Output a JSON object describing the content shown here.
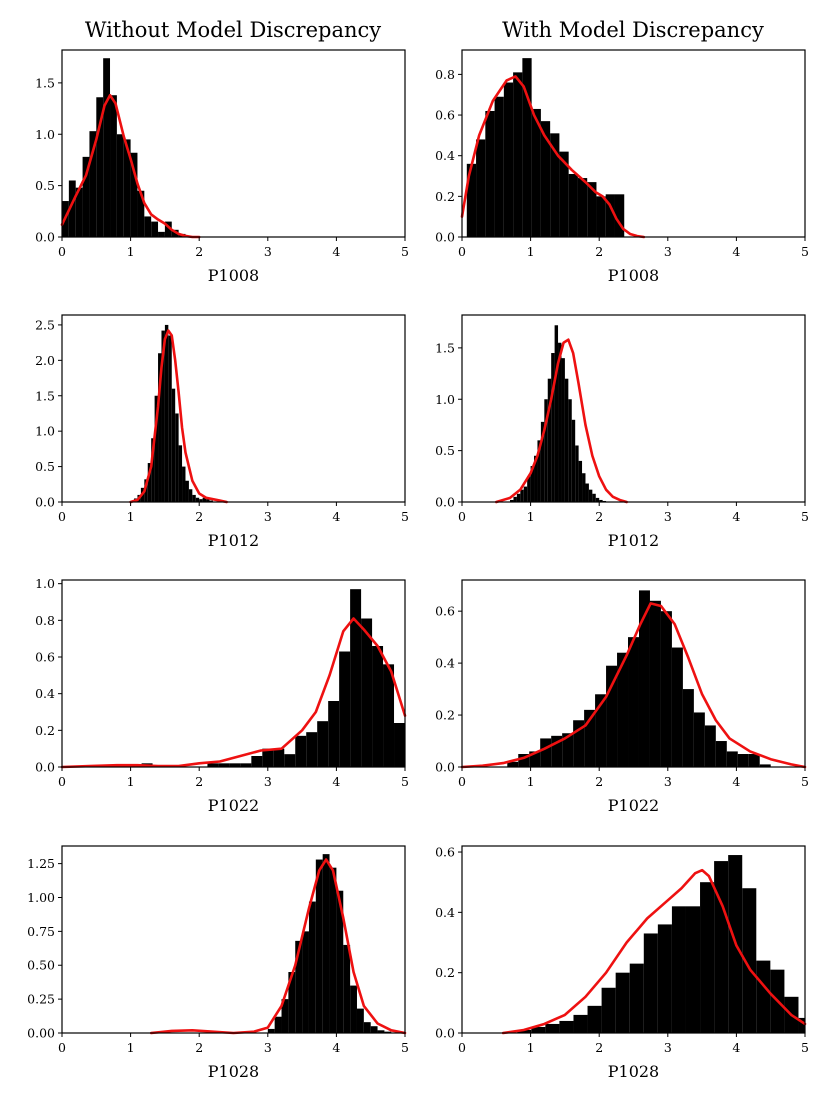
{
  "figure": {
    "column_titles": [
      "Without Model Discrepancy",
      "With Model Discrepancy"
    ]
  },
  "chart_data": [
    {
      "type": "bar",
      "overlay": "kde line",
      "column_title": "Without Model Discrepancy",
      "xlabel": "P1008",
      "ylabel": "",
      "xlim": [
        0,
        5
      ],
      "ylim": [
        0,
        1.82
      ],
      "xticks": [
        "0",
        "1",
        "2",
        "3",
        "4",
        "5"
      ],
      "yticks": [
        "0.0",
        "0.5",
        "1.0",
        "1.5"
      ],
      "ytick_values": [
        0,
        0.5,
        1.0,
        1.5
      ],
      "bins": {
        "start": 0.0,
        "width": 0.1
      },
      "values": [
        0.35,
        0.55,
        0.48,
        0.78,
        1.03,
        1.36,
        1.74,
        1.38,
        1.0,
        0.95,
        0.82,
        0.45,
        0.2,
        0.15,
        0.05,
        0.15,
        0.07,
        0.03,
        0.01
      ],
      "kde": {
        "x": [
          0,
          0.2,
          0.35,
          0.5,
          0.62,
          0.7,
          0.78,
          0.9,
          1.0,
          1.1,
          1.2,
          1.3,
          1.4,
          1.5,
          1.6,
          1.7,
          1.8,
          1.9,
          2.0
        ],
        "y": [
          0.12,
          0.4,
          0.6,
          0.95,
          1.28,
          1.38,
          1.3,
          0.98,
          0.76,
          0.52,
          0.33,
          0.22,
          0.17,
          0.13,
          0.07,
          0.03,
          0.01,
          0.0,
          0.0
        ]
      }
    },
    {
      "type": "bar",
      "overlay": "kde line",
      "column_title": "With Model Discrepancy",
      "xlabel": "P1008",
      "ylabel": "",
      "xlim": [
        0,
        5
      ],
      "ylim": [
        0,
        0.92
      ],
      "xticks": [
        "0",
        "1",
        "2",
        "3",
        "4",
        "5"
      ],
      "yticks": [
        "0.0",
        "0.2",
        "0.4",
        "0.6",
        "0.8"
      ],
      "ytick_values": [
        0,
        0.2,
        0.4,
        0.6,
        0.8
      ],
      "bins": {
        "start": 0.07,
        "width": 0.135
      },
      "values": [
        0.36,
        0.48,
        0.62,
        0.69,
        0.76,
        0.81,
        0.88,
        0.63,
        0.57,
        0.51,
        0.42,
        0.31,
        0.29,
        0.27,
        0.2,
        0.21,
        0.21
      ],
      "kde": {
        "x": [
          0,
          0.1,
          0.25,
          0.45,
          0.65,
          0.78,
          0.9,
          1.05,
          1.2,
          1.4,
          1.6,
          1.8,
          1.95,
          2.05,
          2.15,
          2.25,
          2.35,
          2.45,
          2.55,
          2.65
        ],
        "y": [
          0.1,
          0.3,
          0.5,
          0.67,
          0.77,
          0.79,
          0.74,
          0.6,
          0.5,
          0.4,
          0.33,
          0.27,
          0.22,
          0.2,
          0.16,
          0.09,
          0.04,
          0.015,
          0.005,
          0.0
        ]
      }
    },
    {
      "type": "bar",
      "overlay": "kde line",
      "column_title": "Without Model Discrepancy",
      "xlabel": "P1012",
      "ylabel": "",
      "xlim": [
        0,
        5
      ],
      "ylim": [
        0,
        2.64
      ],
      "xticks": [
        "0",
        "1",
        "2",
        "3",
        "4",
        "5"
      ],
      "yticks": [
        "0.0",
        "0.5",
        "1.0",
        "1.5",
        "2.0",
        "2.5"
      ],
      "ytick_values": [
        0,
        0.5,
        1.0,
        1.5,
        2.0,
        2.5
      ],
      "bins": {
        "start": 1.0,
        "width": 0.05
      },
      "values": [
        0.01,
        0.05,
        0.1,
        0.2,
        0.32,
        0.55,
        0.9,
        1.5,
        2.1,
        2.42,
        2.5,
        2.35,
        1.6,
        1.25,
        0.8,
        0.5,
        0.3,
        0.18,
        0.1,
        0.06,
        0.04,
        0.06,
        0.04,
        0.02
      ],
      "kde": {
        "x": [
          1.0,
          1.1,
          1.2,
          1.3,
          1.4,
          1.45,
          1.5,
          1.55,
          1.6,
          1.65,
          1.7,
          1.75,
          1.8,
          1.9,
          2.0,
          2.1,
          2.2,
          2.3,
          2.4
        ],
        "y": [
          0.0,
          0.03,
          0.15,
          0.5,
          1.35,
          1.9,
          2.3,
          2.42,
          2.35,
          2.0,
          1.55,
          1.05,
          0.7,
          0.3,
          0.12,
          0.06,
          0.04,
          0.02,
          0.0
        ]
      }
    },
    {
      "type": "bar",
      "overlay": "kde line",
      "column_title": "With Model Discrepancy",
      "xlabel": "P1012",
      "ylabel": "",
      "xlim": [
        0,
        5
      ],
      "ylim": [
        0,
        1.82
      ],
      "xticks": [
        "0",
        "1",
        "2",
        "3",
        "4",
        "5"
      ],
      "yticks": [
        "0.0",
        "0.5",
        "1.0",
        "1.5"
      ],
      "ytick_values": [
        0,
        0.5,
        1.0,
        1.5
      ],
      "bins": {
        "start": 0.7,
        "width": 0.05
      },
      "values": [
        0.02,
        0.05,
        0.08,
        0.12,
        0.15,
        0.25,
        0.35,
        0.45,
        0.6,
        0.78,
        1.0,
        1.2,
        1.45,
        1.72,
        1.55,
        1.4,
        1.2,
        1.0,
        0.8,
        0.55,
        0.4,
        0.28,
        0.18,
        0.12,
        0.08,
        0.04,
        0.02,
        0.01
      ],
      "kde": {
        "x": [
          0.5,
          0.7,
          0.85,
          1.0,
          1.1,
          1.2,
          1.3,
          1.4,
          1.48,
          1.55,
          1.62,
          1.7,
          1.8,
          1.9,
          2.0,
          2.1,
          2.2,
          2.3,
          2.4
        ],
        "y": [
          0.0,
          0.04,
          0.12,
          0.28,
          0.45,
          0.7,
          1.0,
          1.35,
          1.55,
          1.58,
          1.45,
          1.15,
          0.75,
          0.45,
          0.25,
          0.12,
          0.05,
          0.02,
          0.0
        ]
      }
    },
    {
      "type": "bar",
      "overlay": "kde line",
      "column_title": "Without Model Discrepancy",
      "xlabel": "P1022",
      "ylabel": "",
      "xlim": [
        0,
        5
      ],
      "ylim": [
        0,
        1.02
      ],
      "xticks": [
        "0",
        "1",
        "2",
        "3",
        "4",
        "5"
      ],
      "yticks": [
        "0.0",
        "0.2",
        "0.4",
        "0.6",
        "0.8",
        "1.0"
      ],
      "ytick_values": [
        0,
        0.2,
        0.4,
        0.6,
        0.8,
        1.0
      ],
      "bins": {
        "start": 0.2,
        "width": 0.16
      },
      "values": [
        0.0,
        0.0,
        0.0,
        0.01,
        0.0,
        0.01,
        0.02,
        0.0,
        0.0,
        0.0,
        0.0,
        0.0,
        0.02,
        0.02,
        0.02,
        0.02,
        0.06,
        0.1,
        0.1,
        0.07,
        0.17,
        0.19,
        0.25,
        0.36,
        0.63,
        0.97,
        0.81,
        0.66,
        0.56,
        0.24
      ],
      "kde": {
        "x": [
          0,
          0.4,
          0.8,
          1.1,
          1.4,
          1.7,
          2.0,
          2.3,
          2.6,
          2.9,
          3.2,
          3.5,
          3.7,
          3.9,
          4.1,
          4.25,
          4.4,
          4.6,
          4.8,
          5.0
        ],
        "y": [
          0.0,
          0.005,
          0.01,
          0.01,
          0.005,
          0.005,
          0.02,
          0.03,
          0.06,
          0.09,
          0.1,
          0.2,
          0.3,
          0.5,
          0.74,
          0.81,
          0.75,
          0.66,
          0.52,
          0.28
        ]
      }
    },
    {
      "type": "bar",
      "overlay": "kde line",
      "column_title": "With Model Discrepancy",
      "xlabel": "P1022",
      "ylabel": "",
      "xlim": [
        0,
        5
      ],
      "ylim": [
        0,
        0.72
      ],
      "xticks": [
        "0",
        "1",
        "2",
        "3",
        "4",
        "5"
      ],
      "yticks": [
        "0.0",
        "0.2",
        "0.4",
        "0.6"
      ],
      "ytick_values": [
        0,
        0.2,
        0.4,
        0.6
      ],
      "bins": {
        "start": 0.5,
        "width": 0.16
      },
      "values": [
        0.0,
        0.02,
        0.05,
        0.06,
        0.11,
        0.12,
        0.13,
        0.18,
        0.22,
        0.28,
        0.39,
        0.44,
        0.5,
        0.68,
        0.64,
        0.6,
        0.46,
        0.3,
        0.21,
        0.16,
        0.1,
        0.06,
        0.05,
        0.05,
        0.01,
        0.0
      ],
      "kde": {
        "x": [
          0,
          0.3,
          0.6,
          0.9,
          1.2,
          1.5,
          1.8,
          2.1,
          2.4,
          2.6,
          2.75,
          2.9,
          3.1,
          3.3,
          3.5,
          3.7,
          3.9,
          4.2,
          4.5,
          4.8,
          5.0
        ],
        "y": [
          0.0,
          0.005,
          0.015,
          0.035,
          0.07,
          0.11,
          0.16,
          0.27,
          0.43,
          0.55,
          0.63,
          0.62,
          0.55,
          0.42,
          0.28,
          0.18,
          0.11,
          0.06,
          0.03,
          0.01,
          0.0
        ]
      }
    },
    {
      "type": "bar",
      "overlay": "kde line",
      "column_title": "Without Model Discrepancy",
      "xlabel": "P1028",
      "ylabel": "",
      "xlim": [
        0,
        5
      ],
      "ylim": [
        0,
        1.38
      ],
      "xticks": [
        "0",
        "1",
        "2",
        "3",
        "4",
        "5"
      ],
      "yticks": [
        "0.00",
        "0.25",
        "0.50",
        "0.75",
        "1.00",
        "1.25"
      ],
      "ytick_values": [
        0,
        0.25,
        0.5,
        0.75,
        1.0,
        1.25
      ],
      "bins": {
        "start": 3.0,
        "width": 0.1
      },
      "values": [
        0.03,
        0.12,
        0.25,
        0.45,
        0.68,
        0.75,
        0.97,
        1.28,
        1.32,
        1.22,
        1.05,
        0.65,
        0.35,
        0.18,
        0.08,
        0.05,
        0.02,
        0.01
      ],
      "kde": {
        "x": [
          1.3,
          1.6,
          1.9,
          2.2,
          2.5,
          2.8,
          3.0,
          3.2,
          3.4,
          3.6,
          3.75,
          3.85,
          3.95,
          4.1,
          4.25,
          4.4,
          4.6,
          4.8,
          5.0
        ],
        "y": [
          0.0,
          0.015,
          0.02,
          0.01,
          0.0,
          0.01,
          0.04,
          0.2,
          0.5,
          0.92,
          1.2,
          1.28,
          1.2,
          0.85,
          0.45,
          0.2,
          0.07,
          0.02,
          0.0
        ]
      }
    },
    {
      "type": "bar",
      "overlay": "kde line",
      "column_title": "With Model Discrepancy",
      "xlabel": "P1028",
      "ylabel": "",
      "xlim": [
        0,
        5
      ],
      "ylim": [
        0,
        0.62
      ],
      "xticks": [
        "0",
        "1",
        "2",
        "3",
        "4",
        "5"
      ],
      "yticks": [
        "0.0",
        "0.2",
        "0.4",
        "0.6"
      ],
      "ytick_values": [
        0,
        0.2,
        0.4,
        0.6
      ],
      "bins": {
        "start": 0.6,
        "width": 0.205
      },
      "values": [
        0.0,
        0.01,
        0.02,
        0.03,
        0.04,
        0.06,
        0.09,
        0.15,
        0.2,
        0.23,
        0.33,
        0.36,
        0.42,
        0.42,
        0.5,
        0.57,
        0.59,
        0.48,
        0.24,
        0.21,
        0.12,
        0.05
      ],
      "kde": {
        "x": [
          0.6,
          0.9,
          1.2,
          1.5,
          1.8,
          2.1,
          2.4,
          2.7,
          3.0,
          3.2,
          3.4,
          3.5,
          3.6,
          3.8,
          4.0,
          4.2,
          4.5,
          4.8,
          5.0
        ],
        "y": [
          0.0,
          0.01,
          0.03,
          0.06,
          0.12,
          0.2,
          0.3,
          0.38,
          0.44,
          0.48,
          0.53,
          0.54,
          0.52,
          0.42,
          0.29,
          0.21,
          0.13,
          0.06,
          0.03
        ]
      }
    }
  ]
}
